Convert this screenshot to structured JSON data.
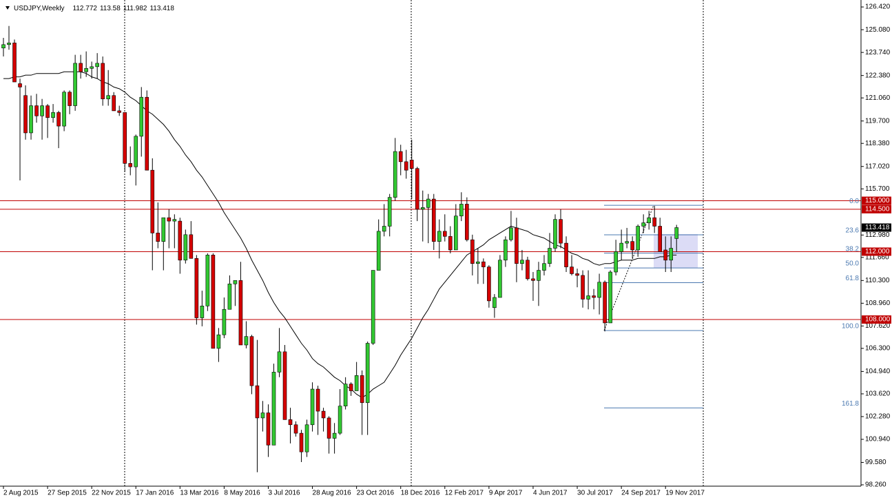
{
  "chart_data": {
    "type": "candlestick",
    "title": "USDJPY,Weekly",
    "categories": [
      "2 Aug 2015",
      null,
      null,
      null,
      null,
      null,
      null,
      null,
      "27 Sep 2015",
      null,
      null,
      null,
      null,
      null,
      null,
      null,
      "22 Nov 2015",
      null,
      null,
      null,
      null,
      null,
      null,
      null,
      "17 Jan 2016",
      null,
      null,
      null,
      null,
      null,
      null,
      null,
      "13 Mar 2016",
      null,
      null,
      null,
      null,
      null,
      null,
      null,
      "8 May 2016",
      null,
      null,
      null,
      null,
      null,
      null,
      null,
      "3 Jul 2016",
      null,
      null,
      null,
      null,
      null,
      null,
      null,
      "28 Aug 2016",
      null,
      null,
      null,
      null,
      null,
      null,
      null,
      "23 Oct 2016",
      null,
      null,
      null,
      null,
      null,
      null,
      null,
      "18 Dec 2016",
      null,
      null,
      null,
      null,
      null,
      null,
      null,
      "12 Feb 2017",
      null,
      null,
      null,
      null,
      null,
      null,
      null,
      "9 Apr 2017",
      null,
      null,
      null,
      null,
      null,
      null,
      null,
      "4 Jun 2017",
      null,
      null,
      null,
      null,
      null,
      null,
      null,
      "30 Jul 2017",
      null,
      null,
      null,
      null,
      null,
      null,
      null,
      "24 Sep 2017",
      null,
      null,
      null,
      null,
      null,
      null,
      null,
      "19 Nov 2017",
      null,
      null
    ],
    "open": [
      124.0,
      124.2,
      124.3,
      121.9,
      121.2,
      119.0,
      120.6,
      120.0,
      120.6,
      119.9,
      120.2,
      119.4,
      121.4,
      120.6,
      123.1,
      122.6,
      122.8,
      122.9,
      123.1,
      121.0,
      121.2,
      120.3,
      120.2,
      117.2,
      117.0,
      118.8,
      121.1,
      116.8,
      113.1,
      112.6,
      114.0,
      113.8,
      113.8,
      111.5,
      113.0,
      111.6,
      108.1,
      108.8,
      111.8,
      106.3,
      107.1,
      108.6,
      110.1,
      110.3,
      106.5,
      107.0,
      104.1,
      102.2,
      102.5,
      100.6,
      104.9,
      106.1,
      102.1,
      101.8,
      101.3,
      100.2,
      101.8,
      103.9,
      102.6,
      102.2,
      101.0,
      101.3,
      102.9,
      104.2,
      103.8,
      104.7,
      103.1,
      106.6,
      110.9,
      113.2,
      113.5,
      115.2,
      117.9,
      117.3,
      117.4,
      116.9,
      114.5,
      114.6,
      115.1,
      112.6,
      113.2,
      112.9,
      112.1,
      114.1,
      114.8,
      112.7,
      111.3,
      111.4,
      111.1,
      108.7,
      109.3,
      111.5,
      112.7,
      113.4,
      111.3,
      111.5,
      110.4,
      110.3,
      110.9,
      111.3,
      112.2,
      113.9,
      112.5,
      111.1,
      110.7,
      110.6,
      109.2,
      109.4,
      109.3,
      110.2,
      107.8,
      110.8,
      112.0,
      112.5,
      112.6,
      112.1,
      113.5,
      113.7,
      114.0,
      113.5,
      112.1,
      111.5,
      112.772
    ],
    "high": [
      124.6,
      125.3,
      124.5,
      122.2,
      121.8,
      121.2,
      121.3,
      121.0,
      120.7,
      120.7,
      120.3,
      121.5,
      121.5,
      123.6,
      123.6,
      123.8,
      123.2,
      123.7,
      123.5,
      122.7,
      121.4,
      120.6,
      120.2,
      118.2,
      118.9,
      121.7,
      121.5,
      117.5,
      114.9,
      114.0,
      114.5,
      114.2,
      114.0,
      113.3,
      113.8,
      111.8,
      109.7,
      111.9,
      111.9,
      107.5,
      109.3,
      110.6,
      110.3,
      111.4,
      107.9,
      107.1,
      106.8,
      103.2,
      103.0,
      105.4,
      107.5,
      106.5,
      102.8,
      102.0,
      101.5,
      102.1,
      104.3,
      104.1,
      102.8,
      102.3,
      101.9,
      103.9,
      104.6,
      104.3,
      105.5,
      105.0,
      106.7,
      110.9,
      113.9,
      114.8,
      115.4,
      118.7,
      118.3,
      118.0,
      118.6,
      117.0,
      115.6,
      115.4,
      115.4,
      113.9,
      114.2,
      113.5,
      114.8,
      115.5,
      115.2,
      113.0,
      112.2,
      111.6,
      111.2,
      109.5,
      111.8,
      112.9,
      114.4,
      114.0,
      112.1,
      111.7,
      110.8,
      111.4,
      111.8,
      113.1,
      114.2,
      114.5,
      112.9,
      111.8,
      111.0,
      110.9,
      110.9,
      109.8,
      110.7,
      110.3,
      110.9,
      112.7,
      113.3,
      113.4,
      112.9,
      113.6,
      114.2,
      114.4,
      114.7,
      114.0,
      112.9,
      112.9,
      113.58
    ],
    "low": [
      123.5,
      123.9,
      122.0,
      116.2,
      118.6,
      118.6,
      119.6,
      118.6,
      118.7,
      119.6,
      118.1,
      119.1,
      120.1,
      120.3,
      122.2,
      122.3,
      122.2,
      122.2,
      120.6,
      120.6,
      120.3,
      120.0,
      116.7,
      116.5,
      115.9,
      117.6,
      116.8,
      110.9,
      112.2,
      110.9,
      112.2,
      112.2,
      110.7,
      111.3,
      111.6,
      107.7,
      107.6,
      108.5,
      106.3,
      105.5,
      106.9,
      108.6,
      108.8,
      106.5,
      106.3,
      103.6,
      99.0,
      101.4,
      99.9,
      100.6,
      104.6,
      102.1,
      100.7,
      101.1,
      99.6,
      99.9,
      101.4,
      101.2,
      101.4,
      100.1,
      100.1,
      101.2,
      102.7,
      103.5,
      103.8,
      101.2,
      101.2,
      106.5,
      110.9,
      112.9,
      112.9,
      115.0,
      116.5,
      116.3,
      115.1,
      113.8,
      112.6,
      112.5,
      112.1,
      111.6,
      112.6,
      111.9,
      112.1,
      113.8,
      112.6,
      110.6,
      110.1,
      110.1,
      108.7,
      108.1,
      109.3,
      111.1,
      112.6,
      110.2,
      110.9,
      110.3,
      109.1,
      108.8,
      110.6,
      111.1,
      112.0,
      112.2,
      110.8,
      110.6,
      109.9,
      108.7,
      108.6,
      108.6,
      108.3,
      107.3,
      107.8,
      110.6,
      111.5,
      112.2,
      111.6,
      111.7,
      113.1,
      113.3,
      113.1,
      112.0,
      110.8,
      110.8,
      111.982
    ],
    "close": [
      124.2,
      124.3,
      122.0,
      121.7,
      119.0,
      120.6,
      120.0,
      120.6,
      119.9,
      120.2,
      119.4,
      121.4,
      120.6,
      123.1,
      122.6,
      122.8,
      122.9,
      123.1,
      121.0,
      121.2,
      120.3,
      120.2,
      117.2,
      117.0,
      118.8,
      121.1,
      116.8,
      113.1,
      112.6,
      114.0,
      113.8,
      113.9,
      111.5,
      113.0,
      111.6,
      108.1,
      108.8,
      111.8,
      106.3,
      107.1,
      108.6,
      110.1,
      110.3,
      106.5,
      107.0,
      104.1,
      102.2,
      102.5,
      100.6,
      104.9,
      106.1,
      102.1,
      101.8,
      101.3,
      100.2,
      101.8,
      103.9,
      102.6,
      102.2,
      101.0,
      101.3,
      102.9,
      104.2,
      103.8,
      104.7,
      103.1,
      106.6,
      110.9,
      113.2,
      113.5,
      115.2,
      117.9,
      117.3,
      116.8,
      116.9,
      114.5,
      114.6,
      115.1,
      112.6,
      113.2,
      112.9,
      112.1,
      114.1,
      114.8,
      112.7,
      111.3,
      111.4,
      111.1,
      109.1,
      109.3,
      111.5,
      112.7,
      113.4,
      111.3,
      111.5,
      110.4,
      110.3,
      110.9,
      111.3,
      112.2,
      113.9,
      112.5,
      111.1,
      110.7,
      110.6,
      109.2,
      109.4,
      109.3,
      110.2,
      107.8,
      110.8,
      112.0,
      112.5,
      112.6,
      112.1,
      113.5,
      113.7,
      114.0,
      113.5,
      112.0,
      111.5,
      112.2,
      113.418
    ],
    "up_color": "#32c832",
    "down_color": "#d40000",
    "ma": {
      "color": "#000000",
      "values": [
        122.2,
        122.2,
        122.3,
        122.3,
        122.4,
        122.4,
        122.5,
        122.5,
        122.5,
        122.5,
        122.5,
        122.6,
        122.6,
        122.6,
        122.6,
        122.5,
        122.3,
        122.2,
        122.0,
        121.9,
        121.7,
        121.6,
        121.4,
        121.1,
        120.9,
        120.6,
        120.3,
        120.1,
        119.8,
        119.5,
        119.1,
        118.6,
        118.2,
        117.7,
        117.3,
        116.8,
        116.4,
        115.9,
        115.4,
        114.9,
        114.3,
        113.8,
        113.3,
        112.8,
        112.2,
        111.5,
        110.9,
        110.3,
        109.6,
        109.0,
        108.5,
        108.1,
        107.6,
        107.1,
        106.6,
        106.2,
        105.7,
        105.4,
        105.2,
        104.9,
        104.6,
        104.4,
        104.1,
        103.9,
        103.6,
        103.4,
        103.6,
        103.9,
        104.1,
        104.3,
        104.8,
        105.3,
        105.9,
        106.4,
        106.9,
        107.5,
        108.1,
        108.6,
        109.2,
        109.8,
        110.2,
        110.6,
        111.0,
        111.4,
        111.8,
        112.0,
        112.2,
        112.4,
        112.7,
        112.9,
        113.1,
        113.3,
        113.5,
        113.4,
        113.3,
        113.2,
        113.0,
        112.9,
        112.8,
        112.6,
        112.4,
        112.3,
        112.1,
        111.9,
        111.8,
        111.6,
        111.5,
        111.3,
        111.2,
        111.3,
        111.3,
        111.4,
        111.5,
        111.5,
        111.5,
        111.6,
        111.6,
        111.6,
        111.6,
        111.7,
        111.7,
        111.8,
        111.8
      ]
    },
    "ylim": [
      98.18,
      126.83
    ],
    "yticks": [
      {
        "value": 126.42,
        "label": "126.420"
      },
      {
        "value": 125.08,
        "label": "125.080"
      },
      {
        "value": 123.74,
        "label": "123.740"
      },
      {
        "value": 122.38,
        "label": "122.380"
      },
      {
        "value": 121.06,
        "label": "121.060"
      },
      {
        "value": 119.7,
        "label": "119.700"
      },
      {
        "value": 118.38,
        "label": "118.380"
      },
      {
        "value": 117.02,
        "label": "117.020"
      },
      {
        "value": 115.7,
        "label": "115.700"
      },
      {
        "value": 112.98,
        "label": "112.980"
      },
      {
        "value": 111.66,
        "label": "111.660"
      },
      {
        "value": 110.3,
        "label": "110.300"
      },
      {
        "value": 108.96,
        "label": "108.960"
      },
      {
        "value": 107.62,
        "label": "107.620"
      },
      {
        "value": 106.3,
        "label": "106.300"
      },
      {
        "value": 104.94,
        "label": "104.940"
      },
      {
        "value": 103.62,
        "label": "103.620"
      },
      {
        "value": 102.28,
        "label": "102.280"
      },
      {
        "value": 100.94,
        "label": "100.940"
      },
      {
        "value": 99.58,
        "label": "99.580"
      },
      {
        "value": 98.26,
        "label": "98.260"
      }
    ],
    "hlines": [
      {
        "value": 115,
        "label": "115.000"
      },
      {
        "value": 114.5,
        "label": "114.500"
      },
      {
        "value": 112,
        "label": "112.000"
      },
      {
        "value": 108,
        "label": "108.000"
      }
    ],
    "hline_color": "#c00000",
    "fib": {
      "color": "#4a78b0",
      "levels": [
        {
          "value": 114.73,
          "label": "0.0"
        },
        {
          "value": 112.99,
          "label": "23.6"
        },
        {
          "value": 111.91,
          "label": "38.2"
        },
        {
          "value": 111.04,
          "label": "50.0"
        },
        {
          "value": 110.17,
          "label": "61.8"
        },
        {
          "value": 107.35,
          "label": "100.0"
        },
        {
          "value": 102.79,
          "label": "161.8"
        }
      ]
    }
  }
}
